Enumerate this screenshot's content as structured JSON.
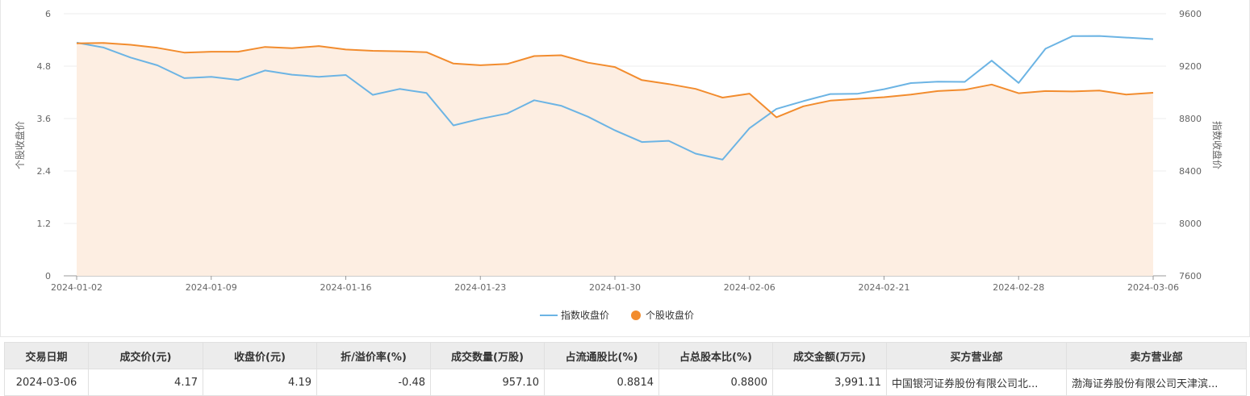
{
  "chart_data": {
    "type": "line",
    "x": [
      "2024-01-02",
      "2024-01-03",
      "2024-01-04",
      "2024-01-05",
      "2024-01-08",
      "2024-01-09",
      "2024-01-10",
      "2024-01-11",
      "2024-01-12",
      "2024-01-15",
      "2024-01-16",
      "2024-01-17",
      "2024-01-18",
      "2024-01-19",
      "2024-01-22",
      "2024-01-23",
      "2024-01-24",
      "2024-01-25",
      "2024-01-26",
      "2024-01-29",
      "2024-01-30",
      "2024-01-31",
      "2024-02-01",
      "2024-02-02",
      "2024-02-05",
      "2024-02-06",
      "2024-02-07",
      "2024-02-08",
      "2024-02-19",
      "2024-02-20",
      "2024-02-21",
      "2024-02-22",
      "2024-02-23",
      "2024-02-26",
      "2024-02-27",
      "2024-02-28",
      "2024-02-29",
      "2024-03-01",
      "2024-03-04",
      "2024-03-05",
      "2024-03-06"
    ],
    "x_ticks": [
      "2024-01-02",
      "2024-01-09",
      "2024-01-16",
      "2024-01-23",
      "2024-01-30",
      "2024-02-06",
      "2024-02-21",
      "2024-02-28",
      "2024-03-06"
    ],
    "series": [
      {
        "name": "指数收盘价",
        "axis": "right",
        "color": "#6cb4e4",
        "fill": false,
        "values": [
          9379,
          9342,
          9266,
          9206,
          9108,
          9118,
          9095,
          9167,
          9135,
          9119,
          9132,
          8981,
          9026,
          8995,
          8748,
          8798,
          8839,
          8940,
          8898,
          8814,
          8710,
          8621,
          8630,
          8532,
          8487,
          8727,
          8873,
          8933,
          8987,
          8989,
          9024,
          9071,
          9081,
          9080,
          9242,
          9072,
          9333,
          9429,
          9430,
          9418,
          9406
        ]
      },
      {
        "name": "个股收盘价",
        "axis": "left",
        "color": "#f28c2e",
        "fill": true,
        "fill_color": "#fdeee2",
        "values": [
          5.32,
          5.33,
          5.29,
          5.22,
          5.11,
          5.13,
          5.13,
          5.24,
          5.21,
          5.26,
          5.18,
          5.15,
          5.14,
          5.12,
          4.86,
          4.82,
          4.85,
          5.03,
          5.05,
          4.88,
          4.78,
          4.48,
          4.39,
          4.28,
          4.08,
          4.17,
          3.63,
          3.88,
          4.01,
          4.05,
          4.09,
          4.15,
          4.23,
          4.26,
          4.38,
          4.18,
          4.23,
          4.22,
          4.24,
          4.15,
          4.19
        ]
      }
    ],
    "y_left": {
      "label": "个股收盘价",
      "range": [
        0,
        6
      ],
      "ticks": [
        "0",
        "1.2",
        "2.4",
        "3.6",
        "4.8",
        "6"
      ]
    },
    "y_right": {
      "label": "指数收盘价",
      "range": [
        7600,
        9600
      ],
      "ticks": [
        "7600",
        "8000",
        "8400",
        "8800",
        "9200",
        "9600"
      ]
    },
    "legend": {
      "placement": "bottom-center",
      "items": [
        "指数收盘价",
        "个股收盘价"
      ]
    },
    "grid": true
  },
  "table": {
    "headers": [
      "交易日期",
      "成交价(元)",
      "收盘价(元)",
      "折/溢价率(%)",
      "成交数量(万股)",
      "占流通股比(%)",
      "占总股本比(%)",
      "成交金额(万元)",
      "买方营业部",
      "卖方营业部"
    ],
    "rows": [
      [
        "2024-03-06",
        "4.17",
        "4.19",
        "-0.48",
        "957.10",
        "0.8814",
        "0.8800",
        "3,991.11",
        "中国银河证券股份有限公司北...",
        "渤海证券股份有限公司天津滨..."
      ]
    ]
  }
}
